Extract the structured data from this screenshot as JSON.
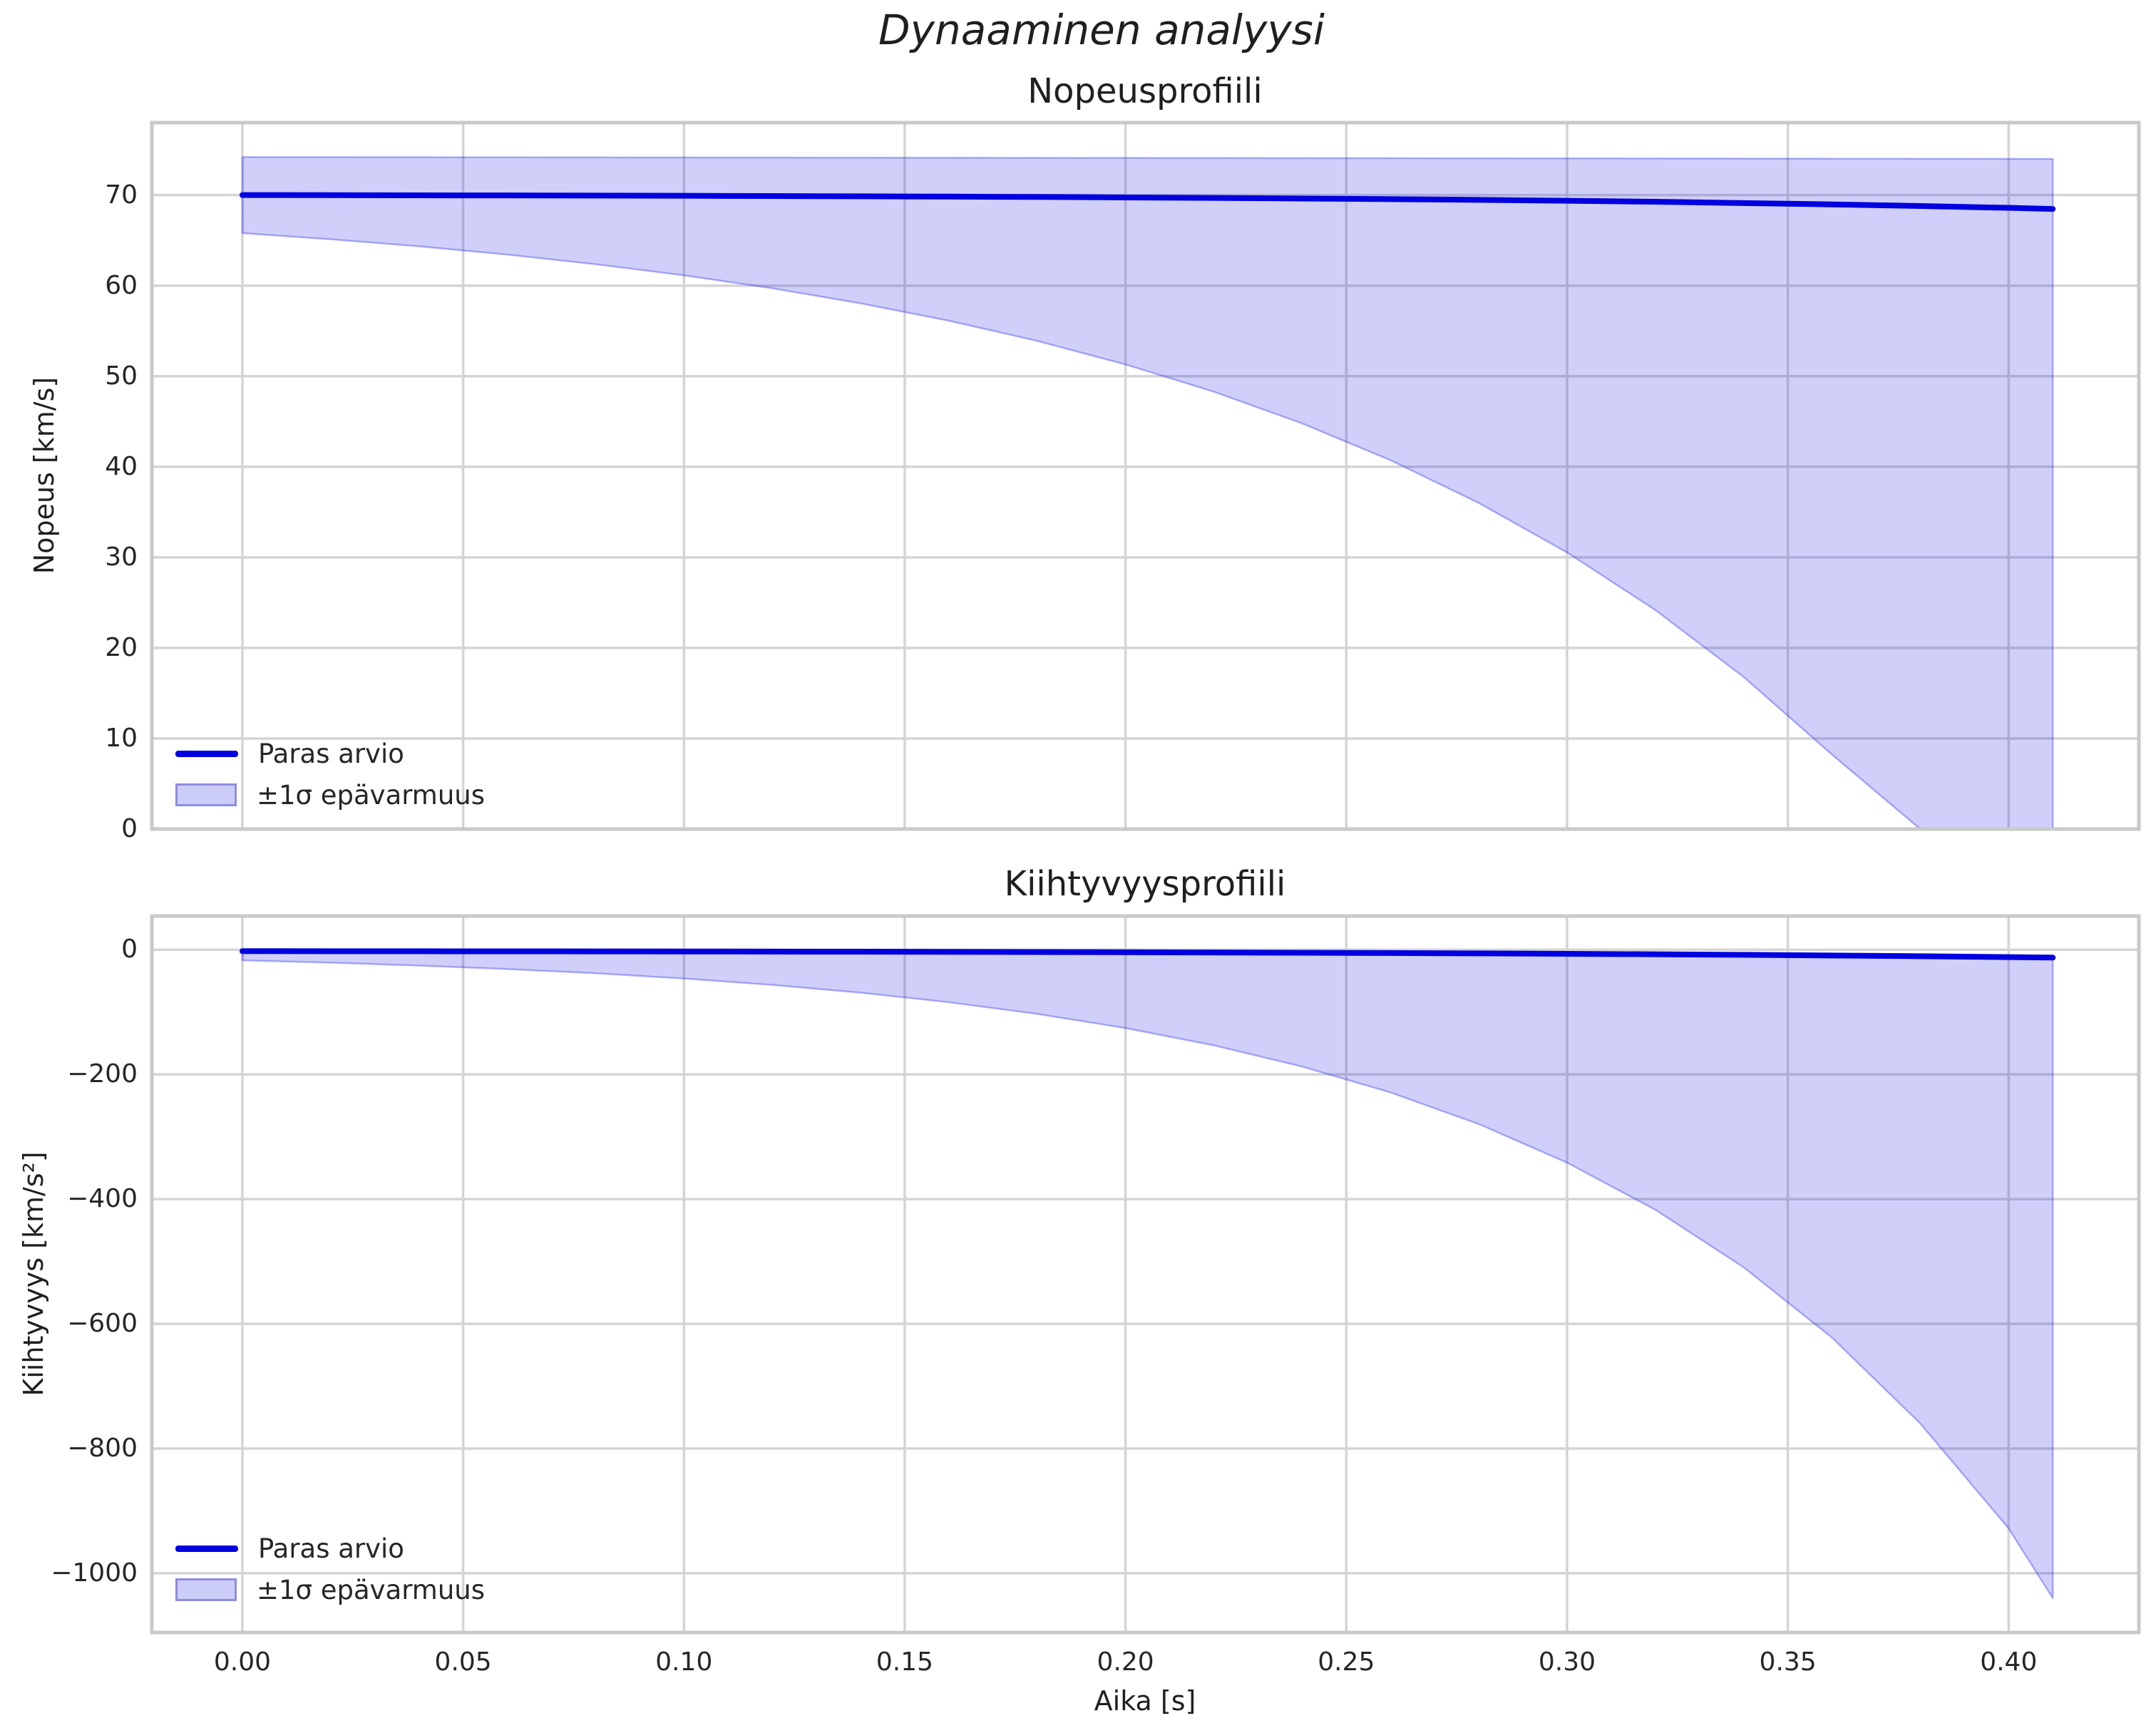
{
  "figure": {
    "suptitle": "Dynaaminen analyysi"
  },
  "colors": {
    "line": "#0000e0",
    "band_fill": "rgba(0,0,230,0.19)",
    "band_edge": "rgba(40,40,230,0.35)",
    "grid": "#d4d4d4",
    "spine": "#c9c9c9",
    "text": "#262626"
  },
  "legend": {
    "line_label": "Paras arvio",
    "band_label": "±1σ epävarmuus",
    "position": "lower left"
  },
  "chart_data": [
    {
      "type": "line",
      "title": "Nopeusprofiili",
      "xlabel": "",
      "ylabel": "Nopeus [km/s]",
      "xlim": [
        -0.0205,
        0.4295
      ],
      "ylim": [
        0,
        78
      ],
      "grid": true,
      "show_xtick_labels": false,
      "xticks": [
        0.0,
        0.05,
        0.1,
        0.15,
        0.2,
        0.25,
        0.3,
        0.35,
        0.4
      ],
      "xtick_labels": [
        "0.00",
        "0.05",
        "0.10",
        "0.15",
        "0.20",
        "0.25",
        "0.30",
        "0.35",
        "0.40"
      ],
      "yticks": [
        0,
        10,
        20,
        30,
        40,
        50,
        60,
        70
      ],
      "ytick_labels": [
        "0",
        "10",
        "20",
        "30",
        "40",
        "50",
        "60",
        "70"
      ],
      "x": [
        0,
        0.02,
        0.04,
        0.06,
        0.08,
        0.1,
        0.12,
        0.14,
        0.16,
        0.18,
        0.2,
        0.22,
        0.24,
        0.26,
        0.28,
        0.3,
        0.32,
        0.34,
        0.36,
        0.38,
        0.4,
        0.41
      ],
      "series": [
        {
          "name": "Paras arvio",
          "y": [
            70,
            69.99,
            69.97,
            69.96,
            69.94,
            69.92,
            69.89,
            69.86,
            69.83,
            69.79,
            69.74,
            69.69,
            69.62,
            69.55,
            69.47,
            69.37,
            69.26,
            69.12,
            68.97,
            68.79,
            68.59,
            68.47
          ]
        }
      ],
      "band": {
        "name": "±1σ epävarmuus",
        "upper": [
          74.2,
          74.19,
          74.18,
          74.17,
          74.16,
          74.15,
          74.14,
          74.13,
          74.12,
          74.11,
          74.1,
          74.09,
          74.08,
          74.07,
          74.06,
          74.05,
          74.04,
          74.03,
          74.02,
          74.01,
          74,
          74
        ],
        "lower": [
          65.8,
          65.12,
          64.34,
          63.43,
          62.37,
          61.14,
          59.71,
          58.05,
          56.13,
          53.9,
          51.3,
          48.29,
          44.79,
          40.73,
          36.01,
          30.54,
          24.18,
          16.79,
          8.22,
          -1.73,
          -13.29,
          -19.76
        ]
      }
    },
    {
      "type": "line",
      "title": "Kiihtyvyysprofiili",
      "xlabel": "Aika [s]",
      "ylabel": "Kiihtyvyys [km/s²]",
      "xlim": [
        -0.0205,
        0.4295
      ],
      "ylim": [
        -1095,
        54
      ],
      "grid": true,
      "show_xtick_labels": true,
      "xticks": [
        0.0,
        0.05,
        0.1,
        0.15,
        0.2,
        0.25,
        0.3,
        0.35,
        0.4
      ],
      "xtick_labels": [
        "0.00",
        "0.05",
        "0.10",
        "0.15",
        "0.20",
        "0.25",
        "0.30",
        "0.35",
        "0.40"
      ],
      "yticks": [
        0,
        -200,
        -400,
        -600,
        -800,
        -1000
      ],
      "ytick_labels": [
        "0",
        "−200",
        "−400",
        "−600",
        "−800",
        "−1000"
      ],
      "x": [
        0,
        0.02,
        0.04,
        0.06,
        0.08,
        0.1,
        0.12,
        0.14,
        0.16,
        0.18,
        0.2,
        0.22,
        0.24,
        0.26,
        0.28,
        0.3,
        0.32,
        0.34,
        0.36,
        0.38,
        0.4,
        0.41
      ],
      "series": [
        {
          "name": "Paras arvio",
          "y": [
            -2.3,
            -2.38,
            -2.48,
            -2.59,
            -2.71,
            -2.86,
            -3.03,
            -3.23,
            -3.46,
            -3.73,
            -4.05,
            -4.41,
            -4.83,
            -5.32,
            -5.89,
            -6.55,
            -7.31,
            -8.2,
            -9.24,
            -10.44,
            -11.83,
            -12.6
          ]
        }
      ],
      "band": {
        "name": "±1σ epävarmuus",
        "upper": [
          -0.3,
          -0.38,
          -0.48,
          -0.59,
          -0.71,
          -0.86,
          -1.03,
          -1.23,
          -1.46,
          -1.73,
          -2.05,
          -2.41,
          -2.83,
          -3.32,
          -3.89,
          -4.55,
          -5.31,
          -6.2,
          -7.24,
          -8.44,
          -9.83,
          -10.6
        ],
        "lower": [
          -17,
          -20.8,
          -25.4,
          -31,
          -37.8,
          -46.2,
          -56.4,
          -68.9,
          -84.2,
          -102.9,
          -125.6,
          -153.4,
          -187.4,
          -228.9,
          -279.6,
          -341.5,
          -417.1,
          -509.4,
          -622.2,
          -759.9,
          -928.2,
          -1040
        ]
      }
    }
  ]
}
